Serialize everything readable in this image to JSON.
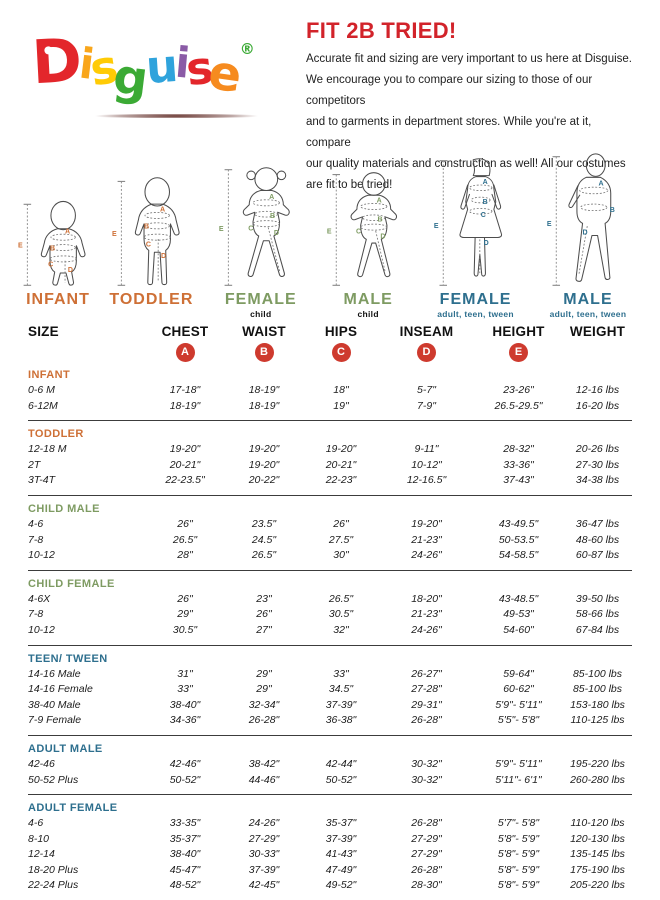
{
  "logo": {
    "letters": [
      {
        "char": "D",
        "color": "#E3262B"
      },
      {
        "char": "i",
        "color": "#F9A61B"
      },
      {
        "char": "s",
        "color": "#FFCB05"
      },
      {
        "char": "g",
        "color": "#3BAA35"
      },
      {
        "char": "u",
        "color": "#2FA3DC"
      },
      {
        "char": "i",
        "color": "#8A5BA6"
      },
      {
        "char": "s",
        "color": "#E3262B"
      },
      {
        "char": "e",
        "color": "#F68B1F"
      }
    ],
    "registered": "®",
    "registered_color": "#3BAA35"
  },
  "intro": {
    "title": "FIT 2B TRIED!",
    "title_color": "#D2232A",
    "lines": [
      "Accurate fit and sizing are very important to us here at Disguise.",
      "We encourage you to compare our sizing to those of our competitors",
      "and to garments in department stores. While you're at it, compare",
      "our quality materials and construction as well! All our costumes",
      "are fit to be tried!"
    ]
  },
  "measure_letters": [
    "A",
    "B",
    "C",
    "D",
    "E"
  ],
  "figures": [
    {
      "label": "INFANT",
      "sublabel": "",
      "color": "#CE7036",
      "sublabel_color": "#111111"
    },
    {
      "label": "TODDLER",
      "sublabel": "",
      "color": "#CE7036",
      "sublabel_color": "#111111"
    },
    {
      "label": "FEMALE",
      "sublabel": "child",
      "color": "#7E9B62",
      "sublabel_color": "#111111"
    },
    {
      "label": "MALE",
      "sublabel": "child",
      "color": "#7E9B62",
      "sublabel_color": "#111111"
    },
    {
      "label": "FEMALE",
      "sublabel": "adult, teen, tween",
      "color": "#2E6F8E",
      "sublabel_color": "#2E6F8E"
    },
    {
      "label": "MALE",
      "sublabel": "adult, teen, tween",
      "color": "#2E6F8E",
      "sublabel_color": "#2E6F8E"
    }
  ],
  "table": {
    "columns": [
      "SIZE",
      "CHEST",
      "WAIST",
      "HIPS",
      "INSEAM",
      "HEIGHT",
      "WEIGHT"
    ],
    "badges": [
      "A",
      "B",
      "C",
      "D",
      "E"
    ],
    "badge_color": "#CE3A2E",
    "groups": [
      {
        "label": "INFANT",
        "color": "#CE7036",
        "rows": [
          {
            "size": "0-6 M",
            "chest": "17-18\"",
            "waist": "18-19\"",
            "hips": "18\"",
            "inseam": "5-7\"",
            "height": "23-26\"",
            "weight": "12-16 lbs"
          },
          {
            "size": "6-12M",
            "chest": "18-19\"",
            "waist": "18-19\"",
            "hips": "19\"",
            "inseam": "7-9\"",
            "height": "26.5-29.5\"",
            "weight": "16-20 lbs"
          }
        ]
      },
      {
        "label": "TODDLER",
        "color": "#CE7036",
        "rows": [
          {
            "size": "12-18 M",
            "chest": "19-20\"",
            "waist": "19-20\"",
            "hips": "19-20\"",
            "inseam": "9-11\"",
            "height": "28-32\"",
            "weight": "20-26 lbs"
          },
          {
            "size": "2T",
            "chest": "20-21\"",
            "waist": "19-20\"",
            "hips": "20-21\"",
            "inseam": "10-12\"",
            "height": "33-36\"",
            "weight": "27-30 lbs"
          },
          {
            "size": "3T-4T",
            "chest": "22-23.5\"",
            "waist": "20-22\"",
            "hips": "22-23\"",
            "inseam": "12-16.5\"",
            "height": "37-43\"",
            "weight": "34-38 lbs"
          }
        ]
      },
      {
        "label": "CHILD MALE",
        "color": "#7E9B62",
        "rows": [
          {
            "size": "4-6",
            "chest": "26\"",
            "waist": "23.5\"",
            "hips": "26\"",
            "inseam": "19-20\"",
            "height": "43-49.5\"",
            "weight": "36-47 lbs"
          },
          {
            "size": "7-8",
            "chest": "26.5\"",
            "waist": "24.5\"",
            "hips": "27.5\"",
            "inseam": "21-23\"",
            "height": "50-53.5\"",
            "weight": "48-60 lbs"
          },
          {
            "size": "10-12",
            "chest": "28\"",
            "waist": "26.5\"",
            "hips": "30\"",
            "inseam": "24-26\"",
            "height": "54-58.5\"",
            "weight": "60-87 lbs"
          }
        ]
      },
      {
        "label": "CHILD FEMALE",
        "color": "#7E9B62",
        "rows": [
          {
            "size": "4-6X",
            "chest": "26\"",
            "waist": "23\"",
            "hips": "26.5\"",
            "inseam": "18-20\"",
            "height": "43-48.5\"",
            "weight": "39-50 lbs"
          },
          {
            "size": "7-8",
            "chest": "29\"",
            "waist": "26\"",
            "hips": "30.5\"",
            "inseam": "21-23\"",
            "height": "49-53\"",
            "weight": "58-66 lbs"
          },
          {
            "size": "10-12",
            "chest": "30.5\"",
            "waist": "27\"",
            "hips": "32\"",
            "inseam": "24-26\"",
            "height": "54-60\"",
            "weight": "67-84 lbs"
          }
        ]
      },
      {
        "label": "TEEN/ TWEEN",
        "color": "#2E6F8E",
        "rows": [
          {
            "size": "14-16 Male",
            "chest": "31\"",
            "waist": "29\"",
            "hips": "33\"",
            "inseam": "26-27\"",
            "height": "59-64\"",
            "weight": "85-100 lbs"
          },
          {
            "size": "14-16 Female",
            "chest": "33\"",
            "waist": "29\"",
            "hips": "34.5\"",
            "inseam": "27-28\"",
            "height": "60-62\"",
            "weight": "85-100 lbs"
          },
          {
            "size": "38-40 Male",
            "chest": "38-40\"",
            "waist": "32-34\"",
            "hips": "37-39\"",
            "inseam": "29-31\"",
            "height": "5'9\"- 5'11\"",
            "weight": "153-180 lbs"
          },
          {
            "size": "7-9 Female",
            "chest": "34-36\"",
            "waist": "26-28\"",
            "hips": "36-38\"",
            "inseam": "26-28\"",
            "height": "5'5\"- 5'8\"",
            "weight": "110-125 lbs"
          }
        ]
      },
      {
        "label": "ADULT MALE",
        "color": "#2E6F8E",
        "rows": [
          {
            "size": "42-46",
            "chest": "42-46\"",
            "waist": "38-42\"",
            "hips": "42-44\"",
            "inseam": "30-32\"",
            "height": "5'9\"- 5'11\"",
            "weight": "195-220 lbs"
          },
          {
            "size": "50-52 Plus",
            "chest": "50-52\"",
            "waist": "44-46\"",
            "hips": "50-52\"",
            "inseam": "30-32\"",
            "height": "5'11\"- 6'1\"",
            "weight": "260-280 lbs"
          }
        ]
      },
      {
        "label": "ADULT FEMALE",
        "color": "#2E6F8E",
        "rows": [
          {
            "size": "4-6",
            "chest": "33-35\"",
            "waist": "24-26\"",
            "hips": "35-37\"",
            "inseam": "26-28\"",
            "height": "5'7\"- 5'8\"",
            "weight": "110-120 lbs"
          },
          {
            "size": "8-10",
            "chest": "35-37\"",
            "waist": "27-29\"",
            "hips": "37-39\"",
            "inseam": "27-29\"",
            "height": "5'8\"- 5'9\"",
            "weight": "120-130 lbs"
          },
          {
            "size": "12-14",
            "chest": "38-40\"",
            "waist": "30-33\"",
            "hips": "41-43\"",
            "inseam": "27-29\"",
            "height": "5'8\"- 5'9\"",
            "weight": "135-145 lbs"
          },
          {
            "size": "18-20 Plus",
            "chest": "45-47\"",
            "waist": "37-39\"",
            "hips": "47-49\"",
            "inseam": "26-28\"",
            "height": "5'8\"- 5'9\"",
            "weight": "175-190 lbs"
          },
          {
            "size": "22-24 Plus",
            "chest": "48-52\"",
            "waist": "42-45\"",
            "hips": "49-52\"",
            "inseam": "28-30\"",
            "height": "5'8\"- 5'9\"",
            "weight": "205-220 lbs"
          }
        ]
      }
    ]
  }
}
